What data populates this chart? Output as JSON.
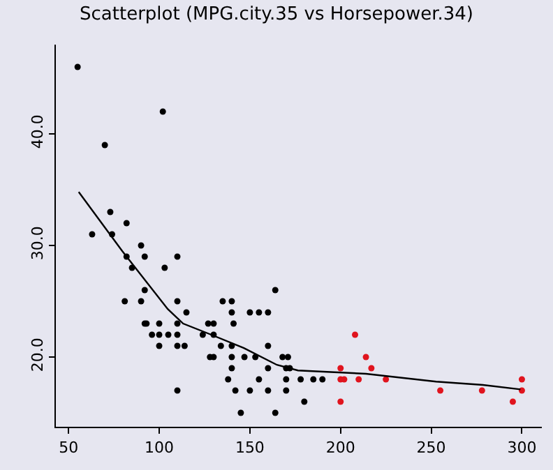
{
  "chart_data": {
    "type": "scatter",
    "title": "Scatterplot (MPG.city.35 vs Horsepower.34)",
    "series": [
      {
        "color": "#000000",
        "x": [
          55,
          102,
          70,
          73,
          82,
          63,
          74,
          90,
          92,
          82,
          110,
          103,
          85,
          81,
          90,
          92,
          110,
          115,
          92,
          93,
          100,
          110,
          96,
          100,
          105,
          110,
          100,
          110,
          114,
          110,
          124,
          127,
          130,
          130,
          135,
          140,
          140,
          141,
          134,
          140,
          128,
          130,
          140,
          140,
          138,
          142,
          145,
          147,
          150,
          155,
          160,
          164,
          153,
          155,
          150,
          160,
          160,
          160,
          164,
          168,
          171,
          170,
          172,
          170,
          170,
          178,
          180,
          185,
          190
        ],
        "values": [
          46,
          42,
          39,
          33,
          32,
          31,
          31,
          30,
          29,
          29,
          29,
          28,
          28,
          25,
          25,
          26,
          25,
          24,
          23,
          23,
          23,
          23,
          22,
          22,
          22,
          22,
          21,
          21,
          21,
          17,
          22,
          23,
          23,
          22,
          25,
          25,
          24,
          23,
          21,
          21,
          20,
          20,
          20,
          19,
          18,
          17,
          15,
          20,
          24,
          24,
          24,
          26,
          20,
          18,
          17,
          21,
          19,
          17,
          15,
          20,
          20,
          19,
          19,
          18,
          17,
          18,
          16,
          18,
          18
        ]
      },
      {
        "color": "#e0141e",
        "x": [
          200,
          200,
          202,
          200,
          208,
          214,
          217,
          210,
          225,
          255,
          278,
          295,
          300,
          300
        ],
        "values": [
          19,
          18,
          18,
          16,
          22,
          20,
          19,
          18,
          18,
          17,
          17,
          16,
          18,
          17
        ]
      },
      {
        "type": "line",
        "color": "#000000",
        "marker": "none",
        "x": [
          55.6,
          79.6,
          104.7,
          113.2,
          128.7,
          146.7,
          164.9,
          176.5,
          214,
          252.7,
          278.5,
          299.2
        ],
        "values": [
          34.8,
          29.5,
          24.3,
          23,
          22,
          20.8,
          19.3,
          18.8,
          18.5,
          17.8,
          17.5,
          17.1
        ]
      }
    ],
    "marker": "circle",
    "xlim": [
      43,
      311
    ],
    "ylim": [
      13.75,
      48
    ],
    "xticks": [
      50,
      100,
      150,
      200,
      250,
      300
    ],
    "yticks": [
      {
        "value": 20,
        "label": "20.0"
      },
      {
        "value": 30,
        "label": "30.0"
      },
      {
        "value": 40,
        "label": "40.0"
      }
    ],
    "grid": false
  }
}
